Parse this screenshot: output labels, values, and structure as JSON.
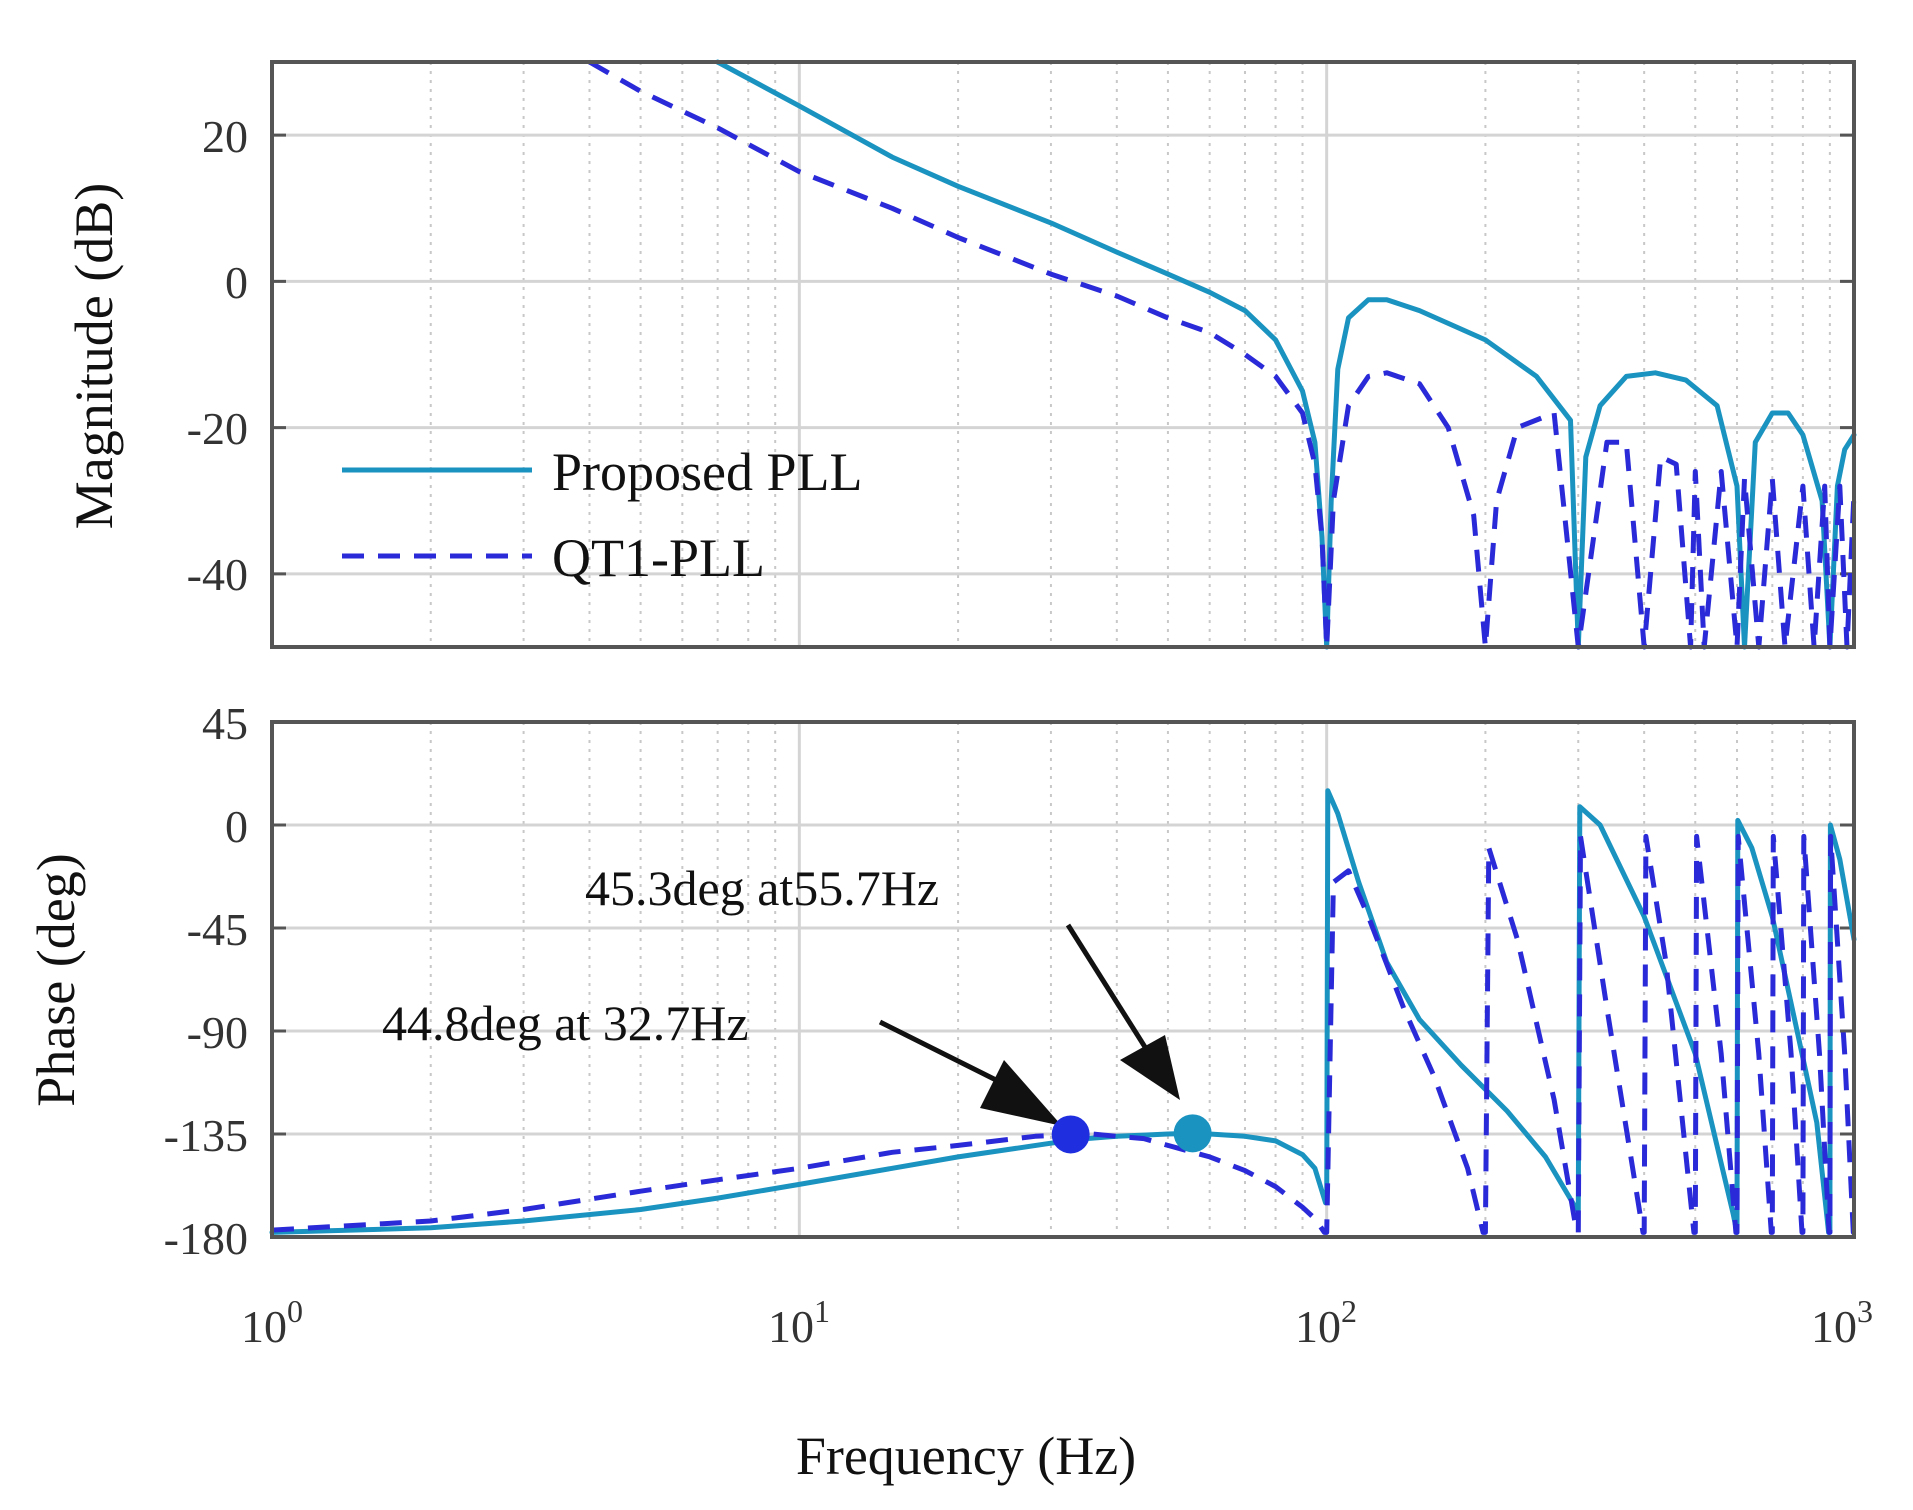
{
  "chart_data": [
    {
      "type": "line",
      "title": "",
      "xlabel": "Frequency (Hz)",
      "ylabel": "Magnitude (dB)",
      "xscale": "log",
      "xlim": [
        1,
        1000
      ],
      "ylim": [
        -50,
        30
      ],
      "yticks": [
        20,
        0,
        -20,
        -40
      ],
      "ytick_labels": [
        "20",
        "0",
        "-20",
        "-40"
      ],
      "grid": true,
      "legend": {
        "position": "lower-left",
        "entries": [
          {
            "name": "Proposed PLL",
            "style": "solid",
            "color": "#1a93c0"
          },
          {
            "name": "QT1-PLL",
            "style": "dashed",
            "color": "#2a2ad8"
          }
        ]
      },
      "series": [
        {
          "name": "Proposed PLL",
          "color": "#1a93c0",
          "style": "solid",
          "x": [
            7,
            10,
            15,
            20,
            30,
            40,
            50,
            60,
            70,
            80,
            90,
            95,
            98,
            100,
            102,
            105,
            110,
            120,
            130,
            150,
            200,
            250,
            290,
            300,
            310,
            330,
            370,
            420,
            480,
            550,
            600,
            620,
            650,
            700,
            750,
            800,
            870,
            900,
            930,
            960,
            1000
          ],
          "y": [
            30,
            24,
            17,
            13,
            8,
            4,
            1,
            -1.5,
            -4,
            -8,
            -15,
            -22,
            -35,
            -50,
            -30,
            -12,
            -5,
            -2.5,
            -2.5,
            -4,
            -8,
            -13,
            -19,
            -50,
            -24,
            -17,
            -13,
            -12.5,
            -13.5,
            -17,
            -28,
            -50,
            -22,
            -18,
            -18,
            -21,
            -30,
            -50,
            -28,
            -23,
            -21
          ]
        },
        {
          "name": "QT1-PLL",
          "color": "#2a2ad8",
          "style": "dashed",
          "x": [
            4,
            5,
            7,
            10,
            15,
            20,
            30,
            40,
            50,
            60,
            70,
            80,
            90,
            95,
            98,
            100,
            103,
            110,
            120,
            130,
            150,
            170,
            190,
            200,
            210,
            230,
            270,
            300,
            340,
            370,
            400,
            430,
            460,
            490,
            500,
            520,
            560,
            600,
            620,
            660,
            700,
            740,
            800,
            840,
            880,
            900,
            940,
            970,
            1000
          ],
          "y": [
            30,
            26,
            21,
            15,
            10,
            6,
            1,
            -2,
            -5,
            -7,
            -10,
            -13,
            -18,
            -25,
            -35,
            -50,
            -30,
            -17,
            -13,
            -12.5,
            -14,
            -20,
            -32,
            -50,
            -30,
            -20,
            -18,
            -50,
            -22,
            -22,
            -50,
            -24,
            -25,
            -50,
            -26,
            -50,
            -26,
            -50,
            -27,
            -50,
            -27,
            -50,
            -28,
            -50,
            -28,
            -50,
            -28,
            -50,
            -29
          ]
        }
      ]
    },
    {
      "type": "line",
      "title": "",
      "xlabel": "Frequency (Hz)",
      "ylabel": "Phase (deg)",
      "xscale": "log",
      "xlim": [
        1,
        1000
      ],
      "ylim": [
        -180,
        45
      ],
      "yticks": [
        45,
        0,
        -45,
        -90,
        -135,
        -180
      ],
      "ytick_labels": [
        "45",
        "0",
        "-45",
        "-90",
        "-135",
        "-180"
      ],
      "xticks": [
        1,
        10,
        100,
        1000
      ],
      "xtick_labels": [
        {
          "base": "10",
          "exp": "0"
        },
        {
          "base": "10",
          "exp": "1"
        },
        {
          "base": "10",
          "exp": "2"
        },
        {
          "base": "10",
          "exp": "3"
        }
      ],
      "grid": true,
      "series": [
        {
          "name": "Proposed PLL",
          "color": "#1a93c0",
          "style": "solid",
          "x": [
            1,
            2,
            3,
            5,
            7,
            10,
            15,
            20,
            30,
            35,
            40,
            45,
            50,
            56,
            60,
            70,
            80,
            90,
            95,
            99.5,
            100,
            100.5,
            105,
            115,
            130,
            150,
            180,
            220,
            260,
            298,
            300,
            302,
            330,
            400,
            500,
            590,
            600,
            602,
            640,
            700,
            780,
            850,
            895,
            900,
            902,
            940,
            1000
          ],
          "y": [
            -178,
            -176,
            -173,
            -168,
            -163,
            -157,
            -150,
            -145,
            -139,
            -137,
            -136,
            -135.5,
            -135,
            -134.7,
            -135,
            -136,
            -138,
            -144,
            -150,
            -165,
            -165,
            15,
            5,
            -25,
            -60,
            -85,
            -105,
            -125,
            -145,
            -168,
            -168,
            8,
            0,
            -40,
            -100,
            -170,
            -178,
            2,
            -10,
            -40,
            -90,
            -130,
            -178,
            -178,
            0,
            -15,
            -50
          ]
        },
        {
          "name": "QT1-PLL",
          "color": "#2a2ad8",
          "style": "dashed",
          "x": [
            1,
            2,
            3,
            5,
            7,
            10,
            15,
            20,
            28,
            32.7,
            36,
            40,
            45,
            50,
            60,
            70,
            80,
            90,
            95,
            99,
            100,
            103,
            110,
            120,
            140,
            160,
            185,
            198,
            200,
            203,
            230,
            270,
            298,
            300,
            303,
            340,
            398,
            400,
            403,
            440,
            497,
            500,
            503,
            560,
            597,
            600,
            603,
            660,
            697,
            700,
            703,
            760,
            797,
            800,
            803,
            860,
            897,
            900,
            903,
            960,
            997,
            1000
          ],
          "y": [
            -177,
            -173,
            -168,
            -160,
            -155,
            -150,
            -143,
            -140,
            -136,
            -135.2,
            -135,
            -136,
            -137,
            -140,
            -145,
            -151,
            -158,
            -167,
            -172,
            -178,
            -178,
            -25,
            -20,
            -40,
            -80,
            -110,
            -150,
            -178,
            -178,
            -10,
            -50,
            -120,
            -178,
            -178,
            -5,
            -80,
            -178,
            -178,
            -5,
            -60,
            -178,
            -178,
            -5,
            -100,
            -178,
            -178,
            -5,
            -100,
            -178,
            -178,
            -5,
            -100,
            -178,
            -178,
            -5,
            -100,
            -178,
            -178,
            -5,
            -100,
            -178,
            -178
          ]
        }
      ],
      "markers": [
        {
          "series": "QT1-PLL",
          "x": 32.7,
          "y": -135.2,
          "color": "#1f2fe0"
        },
        {
          "series": "Proposed PLL",
          "x": 55.7,
          "y": -134.7,
          "color": "#1a93c0"
        }
      ],
      "annotations": [
        {
          "text": "45.3deg at55.7Hz",
          "x": 55.7,
          "y": -134.7
        },
        {
          "text": "44.8deg at 32.7Hz",
          "x": 32.7,
          "y": -135.2
        }
      ]
    }
  ]
}
